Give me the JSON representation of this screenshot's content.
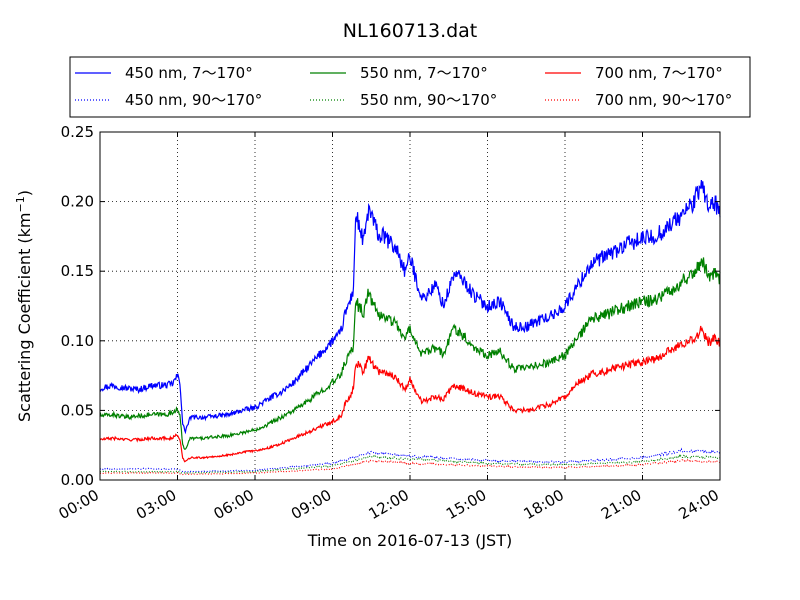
{
  "chart_data": {
    "type": "line",
    "title": "NL160713.dat",
    "xlabel": "Time on 2016-07-13 (JST)",
    "ylabel_main": "Scattering Coefficient (km",
    "ylabel_sup": "−1",
    "ylabel_tail": ")",
    "xlim": [
      0,
      24
    ],
    "ylim": [
      0,
      0.25
    ],
    "x_ticks": [
      0,
      3,
      6,
      9,
      12,
      15,
      18,
      21,
      24
    ],
    "x_tick_labels": [
      "00:00",
      "03:00",
      "06:00",
      "09:00",
      "12:00",
      "15:00",
      "18:00",
      "21:00",
      "24:00"
    ],
    "y_ticks": [
      0,
      0.05,
      0.1,
      0.15,
      0.2,
      0.25
    ],
    "y_tick_labels": [
      "0.00",
      "0.05",
      "0.10",
      "0.15",
      "0.20",
      "0.25"
    ],
    "grid": true,
    "legend_position": "top",
    "x_units": "hours since 00:00 JST",
    "series": [
      {
        "name": "450 nm, 7～170°",
        "color": "#0000ff",
        "style": "solid",
        "x": [
          0,
          0.5,
          1,
          1.5,
          2,
          2.5,
          2.8,
          3.0,
          3.1,
          3.2,
          3.3,
          3.5,
          4,
          4.5,
          5,
          5.5,
          6,
          6.5,
          7,
          7.5,
          8,
          8.5,
          9,
          9.3,
          9.5,
          9.8,
          9.9,
          10.0,
          10.2,
          10.4,
          10.6,
          10.8,
          11,
          11.5,
          11.8,
          12,
          12.3,
          12.5,
          13,
          13.3,
          13.7,
          14,
          14.5,
          15,
          15.5,
          16,
          16.5,
          17,
          17.5,
          18,
          18.5,
          19,
          19.5,
          20,
          20.5,
          21,
          21.5,
          22,
          22.5,
          23,
          23.3,
          23.6,
          23.8,
          24
        ],
        "y": [
          0.066,
          0.068,
          0.066,
          0.065,
          0.068,
          0.068,
          0.069,
          0.075,
          0.07,
          0.04,
          0.035,
          0.045,
          0.045,
          0.046,
          0.047,
          0.05,
          0.052,
          0.058,
          0.063,
          0.07,
          0.08,
          0.09,
          0.1,
          0.105,
          0.12,
          0.135,
          0.19,
          0.185,
          0.17,
          0.195,
          0.185,
          0.175,
          0.175,
          0.165,
          0.15,
          0.16,
          0.14,
          0.13,
          0.14,
          0.125,
          0.148,
          0.145,
          0.132,
          0.125,
          0.128,
          0.11,
          0.11,
          0.115,
          0.118,
          0.125,
          0.14,
          0.155,
          0.16,
          0.165,
          0.17,
          0.173,
          0.175,
          0.182,
          0.19,
          0.2,
          0.212,
          0.195,
          0.2,
          0.19
        ]
      },
      {
        "name": "550 nm, 7～170°",
        "color": "#008000",
        "style": "solid",
        "x": [
          0,
          0.5,
          1,
          1.5,
          2,
          2.5,
          2.8,
          3.0,
          3.1,
          3.2,
          3.3,
          3.5,
          4,
          4.5,
          5,
          5.5,
          6,
          6.5,
          7,
          7.5,
          8,
          8.5,
          9,
          9.3,
          9.5,
          9.8,
          9.9,
          10.0,
          10.2,
          10.4,
          10.6,
          10.8,
          11,
          11.5,
          11.8,
          12,
          12.3,
          12.5,
          13,
          13.3,
          13.7,
          14,
          14.5,
          15,
          15.5,
          16,
          16.5,
          17,
          17.5,
          18,
          18.5,
          19,
          19.5,
          20,
          20.5,
          21,
          21.5,
          22,
          22.5,
          23,
          23.3,
          23.6,
          23.8,
          24
        ],
        "y": [
          0.046,
          0.047,
          0.045,
          0.046,
          0.047,
          0.047,
          0.048,
          0.052,
          0.045,
          0.025,
          0.022,
          0.03,
          0.03,
          0.031,
          0.032,
          0.034,
          0.036,
          0.04,
          0.045,
          0.05,
          0.056,
          0.063,
          0.07,
          0.075,
          0.085,
          0.095,
          0.13,
          0.125,
          0.12,
          0.135,
          0.125,
          0.118,
          0.118,
          0.112,
          0.1,
          0.11,
          0.095,
          0.09,
          0.095,
          0.09,
          0.11,
          0.105,
          0.095,
          0.09,
          0.092,
          0.08,
          0.08,
          0.083,
          0.085,
          0.09,
          0.102,
          0.115,
          0.118,
          0.122,
          0.125,
          0.128,
          0.13,
          0.135,
          0.142,
          0.15,
          0.158,
          0.145,
          0.15,
          0.145
        ]
      },
      {
        "name": "700 nm, 7～170°",
        "color": "#ff0000",
        "style": "solid",
        "x": [
          0,
          0.5,
          1,
          1.5,
          2,
          2.5,
          2.8,
          3.0,
          3.1,
          3.2,
          3.3,
          3.5,
          4,
          4.5,
          5,
          5.5,
          6,
          6.5,
          7,
          7.5,
          8,
          8.5,
          9,
          9.3,
          9.5,
          9.8,
          9.9,
          10.0,
          10.2,
          10.4,
          10.6,
          10.8,
          11,
          11.5,
          11.8,
          12,
          12.3,
          12.5,
          13,
          13.3,
          13.7,
          14,
          14.5,
          15,
          15.5,
          16,
          16.5,
          17,
          17.5,
          18,
          18.5,
          19,
          19.5,
          20,
          20.5,
          21,
          21.5,
          22,
          22.5,
          23,
          23.3,
          23.6,
          23.8,
          24
        ],
        "y": [
          0.029,
          0.03,
          0.029,
          0.029,
          0.03,
          0.03,
          0.03,
          0.033,
          0.028,
          0.016,
          0.013,
          0.016,
          0.016,
          0.017,
          0.018,
          0.02,
          0.021,
          0.023,
          0.026,
          0.03,
          0.034,
          0.038,
          0.042,
          0.045,
          0.055,
          0.065,
          0.085,
          0.083,
          0.078,
          0.088,
          0.082,
          0.078,
          0.078,
          0.073,
          0.065,
          0.072,
          0.06,
          0.056,
          0.06,
          0.058,
          0.068,
          0.066,
          0.062,
          0.06,
          0.06,
          0.05,
          0.05,
          0.052,
          0.055,
          0.06,
          0.07,
          0.076,
          0.078,
          0.081,
          0.083,
          0.085,
          0.087,
          0.092,
          0.097,
          0.102,
          0.108,
          0.098,
          0.103,
          0.098
        ]
      },
      {
        "name": "450 nm, 90～170°",
        "color": "#0000ff",
        "style": "dotted",
        "x": [
          0,
          3,
          3.2,
          6,
          9,
          9.8,
          10.5,
          12,
          15,
          17,
          18,
          21,
          22.5,
          24
        ],
        "y": [
          0.008,
          0.008,
          0.006,
          0.007,
          0.012,
          0.016,
          0.02,
          0.017,
          0.014,
          0.013,
          0.013,
          0.016,
          0.021,
          0.02
        ]
      },
      {
        "name": "550 nm, 90～170°",
        "color": "#008000",
        "style": "dotted",
        "x": [
          0,
          3,
          3.2,
          6,
          9,
          9.8,
          10.5,
          12,
          15,
          17,
          18,
          21,
          22.5,
          24
        ],
        "y": [
          0.006,
          0.006,
          0.005,
          0.006,
          0.01,
          0.014,
          0.017,
          0.015,
          0.012,
          0.011,
          0.011,
          0.013,
          0.017,
          0.016
        ]
      },
      {
        "name": "700 nm, 90～170°",
        "color": "#ff0000",
        "style": "dotted",
        "x": [
          0,
          3,
          3.2,
          6,
          9,
          9.8,
          10.5,
          12,
          15,
          17,
          18,
          21,
          22.5,
          24
        ],
        "y": [
          0.005,
          0.005,
          0.004,
          0.005,
          0.008,
          0.011,
          0.014,
          0.012,
          0.01,
          0.009,
          0.009,
          0.011,
          0.014,
          0.013
        ]
      }
    ]
  }
}
